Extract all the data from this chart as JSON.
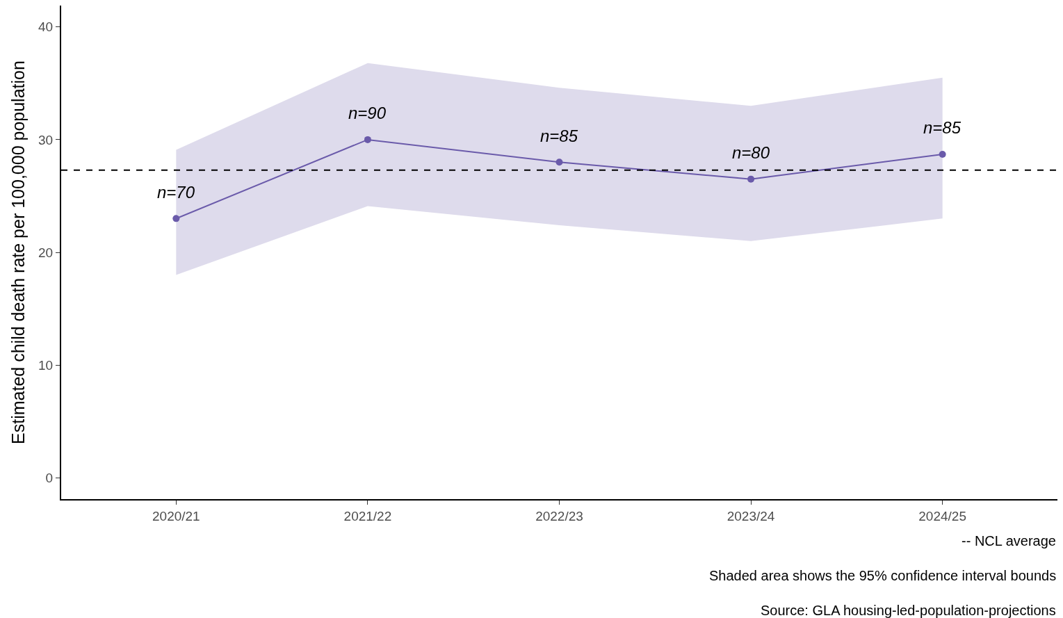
{
  "chart_data": {
    "type": "line",
    "ylabel": "Estimated child death rate per 100,000 population",
    "categories": [
      "2020/21",
      "2021/22",
      "2022/23",
      "2023/24",
      "2024/25"
    ],
    "series": [
      {
        "color": "#6a5aaa",
        "values": [
          23.0,
          30.0,
          28.0,
          26.5,
          28.7
        ],
        "lower": [
          18.0,
          24.1,
          22.4,
          21.0,
          23.0
        ],
        "upper": [
          29.1,
          36.8,
          34.6,
          33.0,
          35.5
        ]
      }
    ],
    "ylim": [
      -1.9,
      41.9
    ],
    "yticks": [
      0,
      10,
      20,
      30,
      40
    ],
    "marker": "circle",
    "line_style": "solid",
    "ref_lines": [
      {
        "axis": "y",
        "value": 27.3,
        "label": "-- NCL average",
        "color": "#000000",
        "line_style": "dashed"
      }
    ],
    "annotations": [
      {
        "text": "n=70",
        "x": "2020/21",
        "y": 23.0
      },
      {
        "text": "n=90",
        "x": "2021/22",
        "y": 30.0
      },
      {
        "text": "n=85",
        "x": "2022/23",
        "y": 28.0
      },
      {
        "text": "n=80",
        "x": "2023/24",
        "y": 26.5
      },
      {
        "text": "n=85",
        "x": "2024/25",
        "y": 28.7
      },
      "Shaded area shows the 95% confidence interval bounds",
      "Source: GLA housing-led-population-projections"
    ]
  }
}
